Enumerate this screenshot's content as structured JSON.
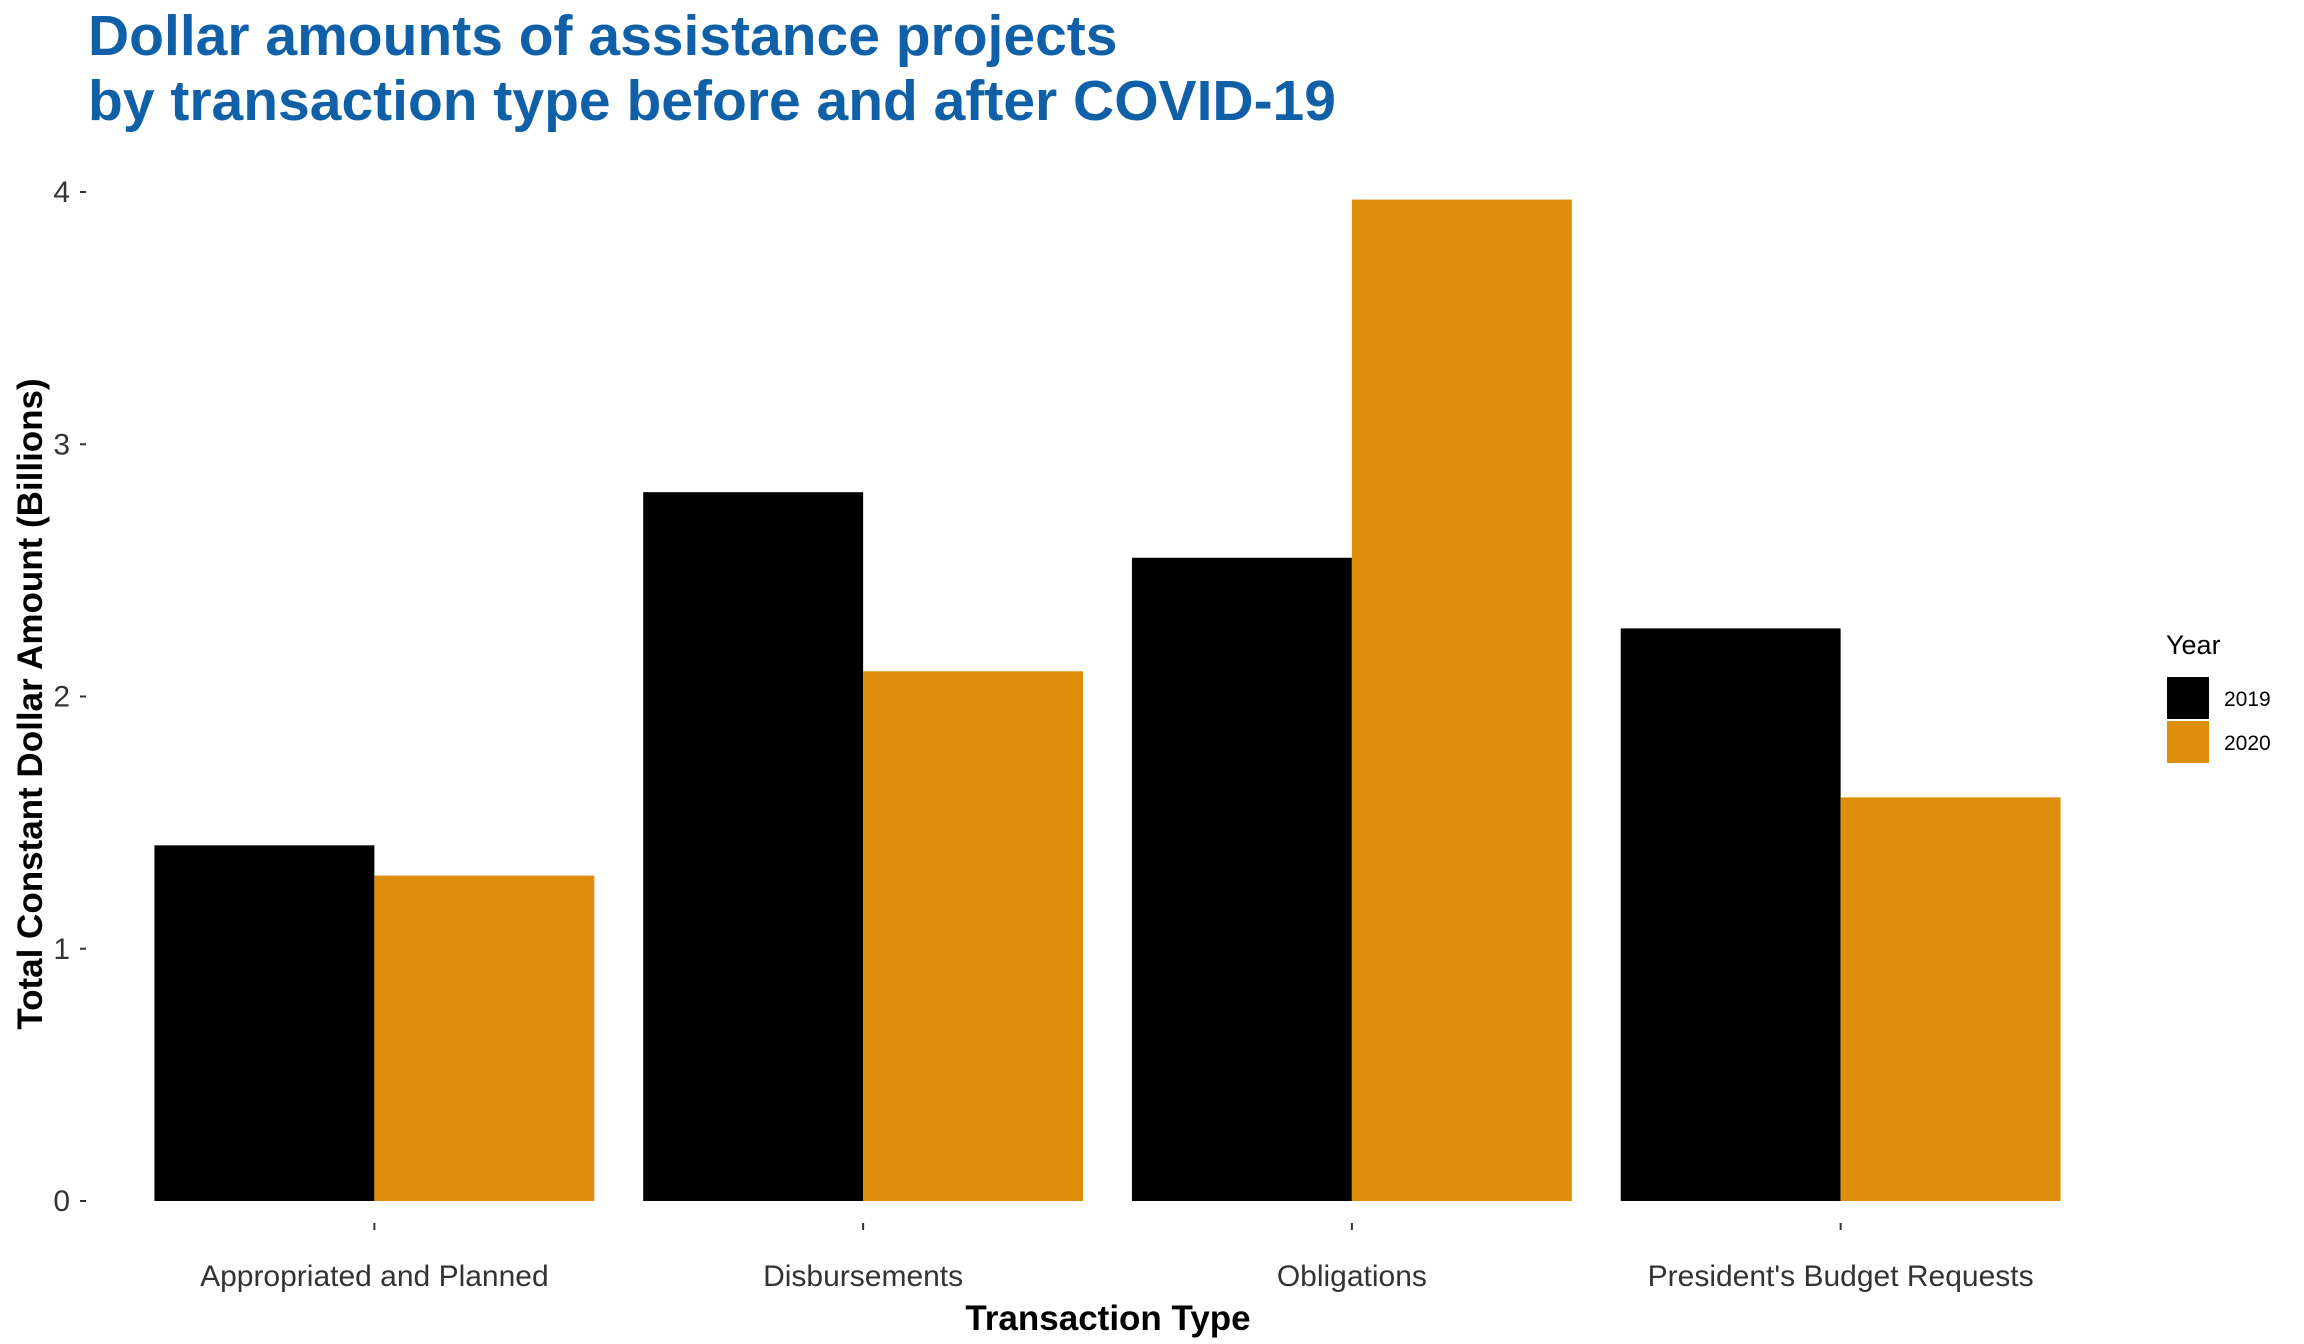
{
  "chart_data": {
    "type": "bar",
    "title_lines": [
      "Dollar amounts of assistance projects",
      "by transaction type before and after COVID-19"
    ],
    "xlabel": "Transaction Type",
    "ylabel": "Total Constant Dollar Amount (Billions)",
    "categories": [
      "Appropriated and Planned",
      "Disbursements",
      "Obligations",
      "President's Budget Requests"
    ],
    "series": [
      {
        "name": "2019",
        "color": "#000000",
        "values": [
          1.41,
          2.81,
          2.55,
          2.27
        ]
      },
      {
        "name": "2020",
        "color": "#dd8e0a",
        "values": [
          1.29,
          2.1,
          3.97,
          1.6
        ]
      }
    ],
    "yticks": [
      "0",
      "1",
      "2",
      "3",
      "4"
    ],
    "ylim": [
      0,
      4.06
    ],
    "grid": false,
    "legend": {
      "title": "Year",
      "position": "right"
    },
    "colors": {
      "title": "#1060a8",
      "tick": "#333333"
    }
  }
}
